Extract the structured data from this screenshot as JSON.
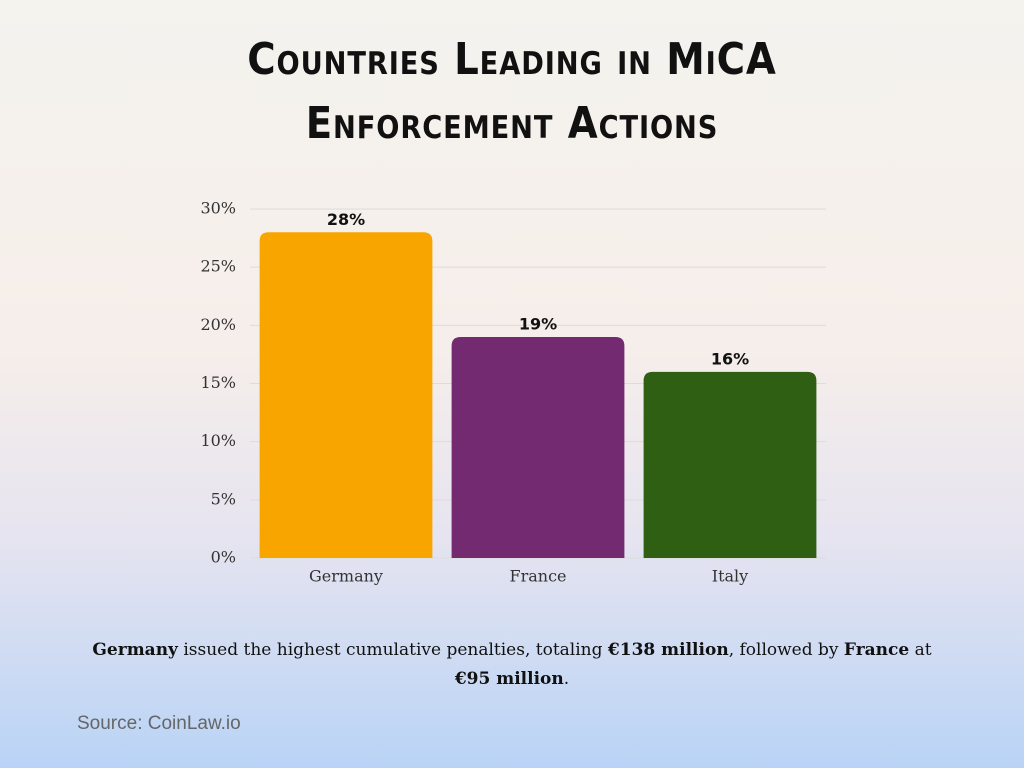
{
  "chart_data": {
    "type": "bar",
    "title": "Countries Leading in MiCA Enforcement Actions",
    "categories": [
      "Germany",
      "France",
      "Italy"
    ],
    "values": [
      28,
      19,
      16
    ],
    "value_labels": [
      "28%",
      "19%",
      "16%"
    ],
    "colors": [
      "#f9a500",
      "#742a70",
      "#2f5f12"
    ],
    "ylim": [
      0,
      30
    ],
    "yticks": [
      {
        "value": 0,
        "label": "0%"
      },
      {
        "value": 5,
        "label": "5%"
      },
      {
        "value": 10,
        "label": "10%"
      },
      {
        "value": 15,
        "label": "15%"
      },
      {
        "value": 20,
        "label": "20%"
      },
      {
        "value": 25,
        "label": "25%"
      },
      {
        "value": 30,
        "label": "30%"
      }
    ],
    "grid": true,
    "caption": [
      {
        "text": "Germany",
        "bold": true
      },
      {
        "text": " issued the highest cumulative penalties, totaling ",
        "bold": false
      },
      {
        "text": "€138 million",
        "bold": true
      },
      {
        "text": ", followed by ",
        "bold": false
      },
      {
        "text": "France",
        "bold": true
      },
      {
        "text": " at ",
        "bold": false
      },
      {
        "text": "€95 million",
        "bold": true
      },
      {
        "text": ".",
        "bold": false
      }
    ],
    "source": "Source: CoinLaw.io"
  }
}
